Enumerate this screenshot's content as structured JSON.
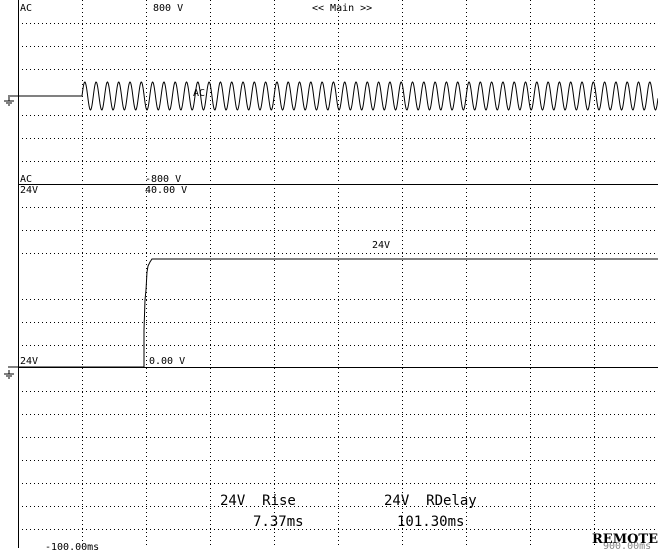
{
  "title": "<< Main >>",
  "channels": [
    {
      "name": "AC",
      "top_label": "AC",
      "bottom_label": "AC",
      "scale_max": "800 V",
      "scale_min": "-800 V",
      "trace_label": "AC"
    },
    {
      "name": "24V",
      "top_label": "24V",
      "bottom_label": "24V",
      "scale_max": "40.00 V",
      "scale_min": "0.00 V",
      "trace_label": "24V"
    }
  ],
  "measurements": [
    {
      "title": "24V  Rise",
      "value": "7.37ms"
    },
    {
      "title": "24V  RDelay",
      "value": "101.30ms"
    }
  ],
  "time_axis": {
    "start": "-100.00ms",
    "end": "900.00ms"
  },
  "status": "REMOTE",
  "colors": {
    "background": "#ffffff",
    "trace": "#000000",
    "grid": "#000000"
  },
  "icons": {
    "ground_marker": "ground-icon"
  }
}
